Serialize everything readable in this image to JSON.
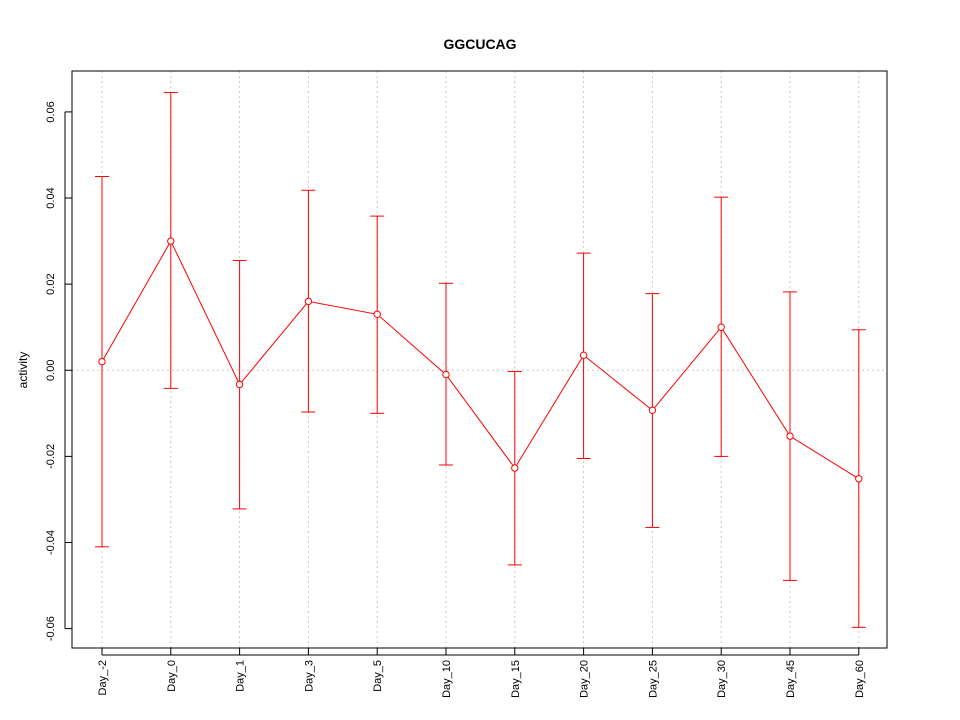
{
  "chart_data": {
    "type": "line",
    "title": "GGCUCAG",
    "xlabel": "",
    "ylabel": "activity",
    "categories": [
      "Day_-2",
      "Day_0",
      "Day_1",
      "Day_3",
      "Day_5",
      "Day_10",
      "Day_15",
      "Day_20",
      "Day_25",
      "Day_30",
      "Day_45",
      "Day_60"
    ],
    "yticks": [
      0.06,
      0.04,
      0.02,
      0.0,
      -0.02,
      -0.04,
      -0.06
    ],
    "ytick_labels": [
      "0.06",
      "0.04",
      "0.02",
      "0.00",
      "-0.02",
      "-0.04",
      "-0.06"
    ],
    "ylim": [
      -0.0645,
      0.0695
    ],
    "grid": true,
    "series": [
      {
        "values": [
          0.002,
          0.03,
          -0.0033,
          0.016,
          0.013,
          -0.001,
          -0.0227,
          0.0035,
          -0.0093,
          0.01,
          -0.0153,
          -0.0252
        ],
        "upper": [
          0.045,
          0.0645,
          0.0255,
          0.0418,
          0.0358,
          0.0202,
          -0.0003,
          0.0272,
          0.0178,
          0.0402,
          0.0182,
          0.0094
        ],
        "lower": [
          -0.041,
          -0.0042,
          -0.0322,
          -0.0097,
          -0.01,
          -0.022,
          -0.0452,
          -0.0205,
          -0.0365,
          -0.02,
          -0.0488,
          -0.0597
        ],
        "color": "#ff0000"
      }
    ]
  }
}
